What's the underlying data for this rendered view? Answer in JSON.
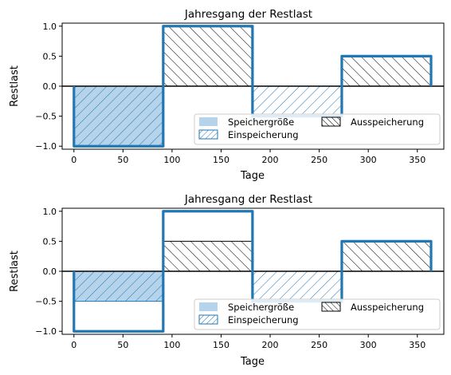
{
  "chart_data": [
    {
      "type": "area",
      "title": "Jahresgang der Restlast",
      "xlabel": "Tage",
      "ylabel": "Restlast",
      "xlim": [
        -12,
        377
      ],
      "ylim": [
        -1.05,
        1.05
      ],
      "xticks": [
        0,
        50,
        100,
        150,
        200,
        250,
        300,
        350
      ],
      "yticks": [
        -1.0,
        -0.5,
        0.0,
        0.5,
        1.0
      ],
      "grid": false,
      "legend_position": "lower-right",
      "series": [
        {
          "name": "Restlast",
          "x": [
            0,
            0,
            91,
            91,
            182,
            182,
            273,
            273,
            364,
            364
          ],
          "y": [
            0,
            -1,
            -1,
            1,
            1,
            -0.5,
            -0.5,
            0.5,
            0.5,
            0
          ],
          "color": "#1f77b4"
        },
        {
          "name": "Speichergröße",
          "x_range": [
            0,
            91
          ],
          "value": -1.0,
          "color": "#b5d3ea"
        },
        {
          "name": "Einspeicherung",
          "segments": [
            {
              "x_range": [
                0,
                91
              ],
              "value": -1.0
            },
            {
              "x_range": [
                182,
                273
              ],
              "value": -0.5
            }
          ],
          "hatch": "/",
          "color": "#1f77b4"
        },
        {
          "name": "Ausspeicherung",
          "segments": [
            {
              "x_range": [
                91,
                182
              ],
              "value": 1.0
            },
            {
              "x_range": [
                273,
                364
              ],
              "value": 0.5
            }
          ],
          "hatch": "\\",
          "color": "#000000"
        }
      ],
      "legend": [
        {
          "label": "Speichergröße",
          "style": "fill",
          "color": "#b5d3ea"
        },
        {
          "label": "Ausspeicherung",
          "style": "hatch-back",
          "color": "#000000"
        },
        {
          "label": "Einspeicherung",
          "style": "hatch-fwd",
          "color": "#1f77b4"
        }
      ]
    },
    {
      "type": "area",
      "title": "Jahresgang der Restlast",
      "xlabel": "Tage",
      "ylabel": "Restlast",
      "xlim": [
        -12,
        377
      ],
      "ylim": [
        -1.05,
        1.05
      ],
      "xticks": [
        0,
        50,
        100,
        150,
        200,
        250,
        300,
        350
      ],
      "yticks": [
        -1.0,
        -0.5,
        0.0,
        0.5,
        1.0
      ],
      "grid": false,
      "legend_position": "lower-right",
      "series": [
        {
          "name": "Restlast",
          "x": [
            0,
            0,
            91,
            91,
            182,
            182,
            273,
            273,
            364,
            364
          ],
          "y": [
            0,
            -1,
            -1,
            1,
            1,
            -0.5,
            -0.5,
            0.5,
            0.5,
            0
          ],
          "color": "#1f77b4"
        },
        {
          "name": "Speichergröße",
          "x_range": [
            0,
            91
          ],
          "value": -0.5,
          "color": "#b5d3ea"
        },
        {
          "name": "Einspeicherung",
          "segments": [
            {
              "x_range": [
                0,
                91
              ],
              "value": -0.5
            },
            {
              "x_range": [
                182,
                273
              ],
              "value": -0.5
            }
          ],
          "hatch": "/",
          "color": "#1f77b4"
        },
        {
          "name": "Ausspeicherung",
          "segments": [
            {
              "x_range": [
                91,
                182
              ],
              "value": 0.5
            },
            {
              "x_range": [
                273,
                364
              ],
              "value": 0.5
            }
          ],
          "hatch": "\\",
          "color": "#000000"
        }
      ],
      "legend": [
        {
          "label": "Speichergröße",
          "style": "fill",
          "color": "#b5d3ea"
        },
        {
          "label": "Ausspeicherung",
          "style": "hatch-back",
          "color": "#000000"
        },
        {
          "label": "Einspeicherung",
          "style": "hatch-fwd",
          "color": "#1f77b4"
        }
      ]
    }
  ]
}
